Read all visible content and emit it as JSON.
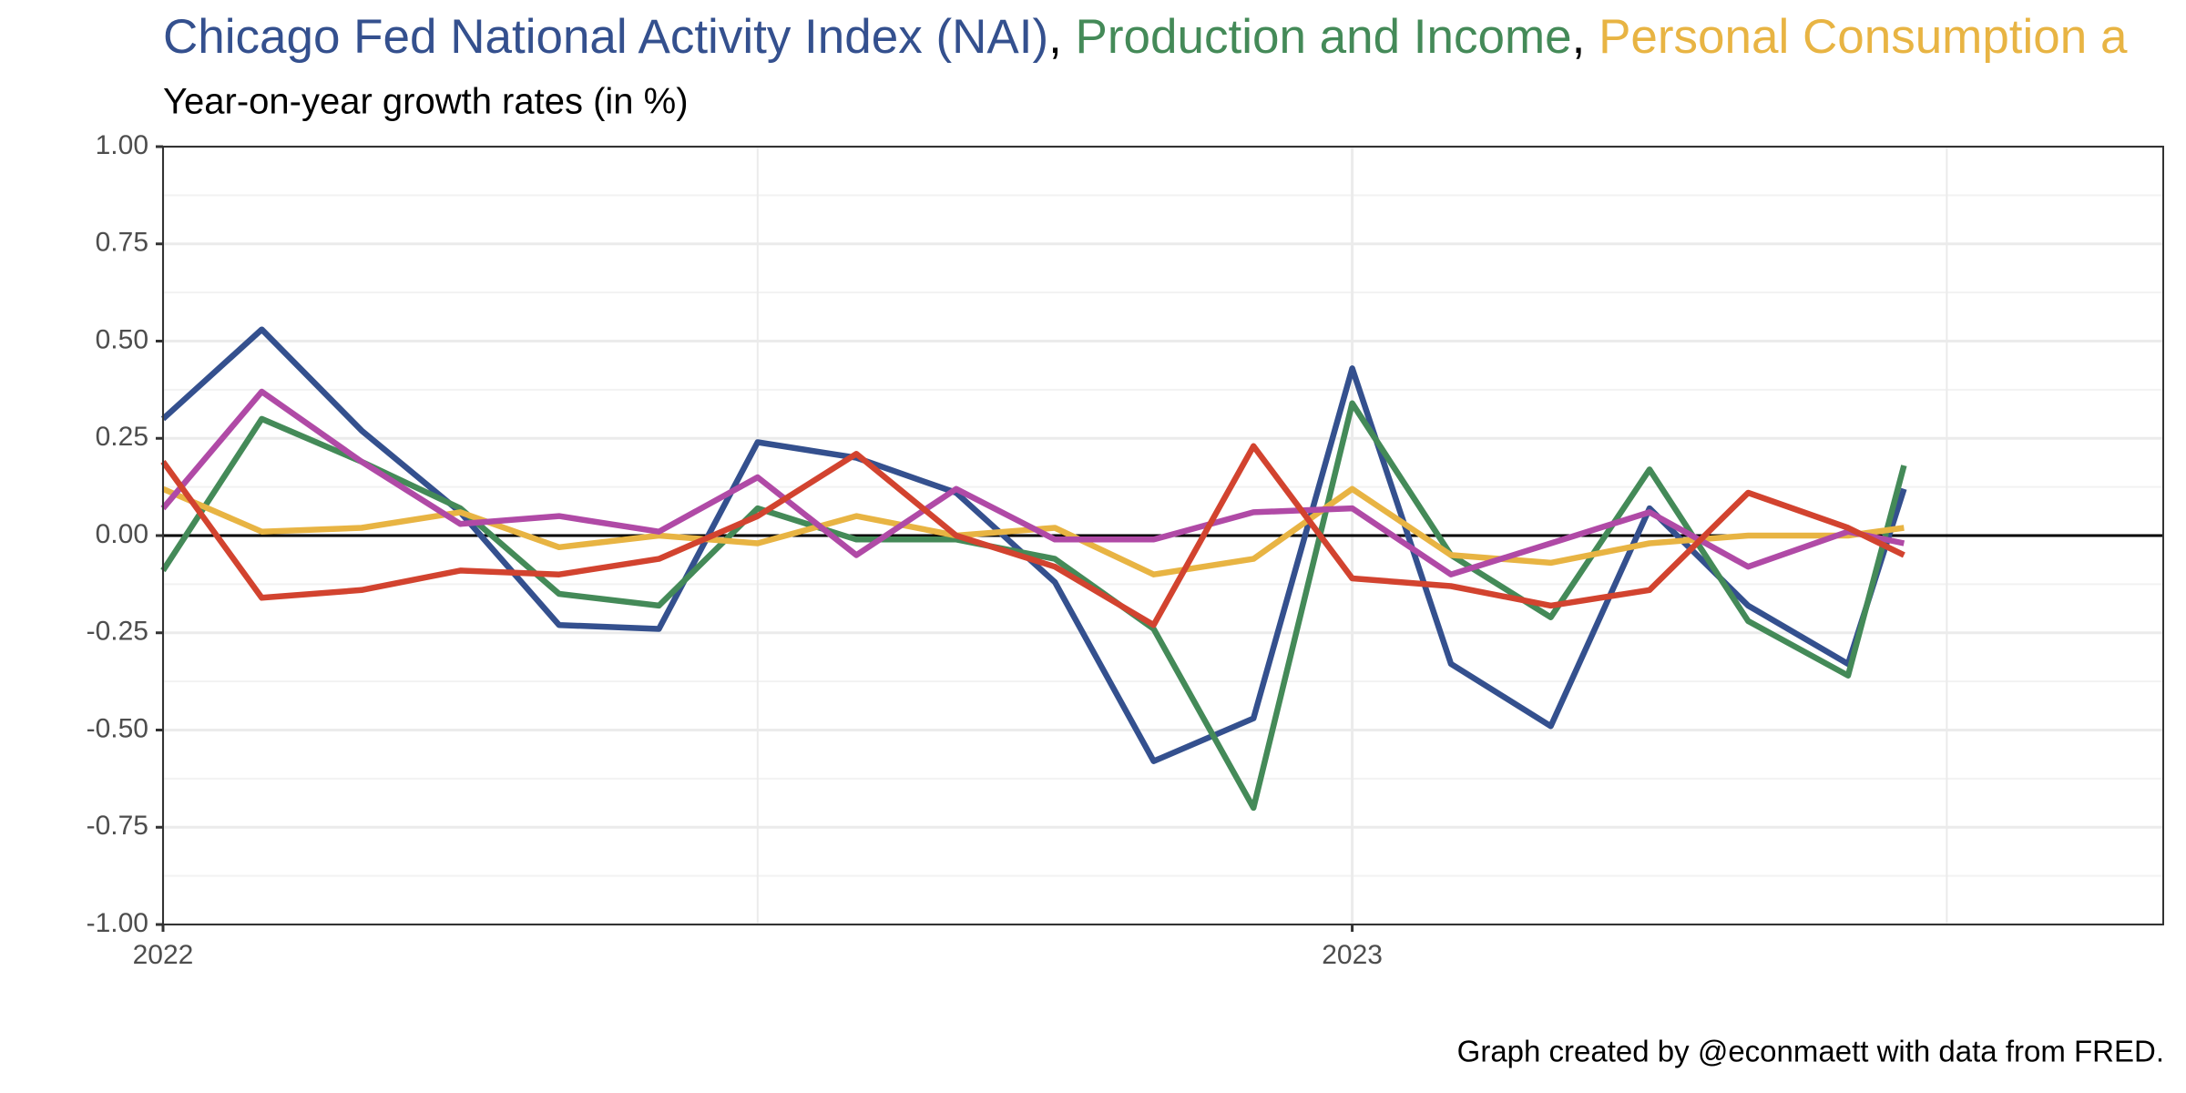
{
  "chart_data": {
    "type": "line",
    "title_separator": ", ",
    "subtitle": "Year-on-year growth rates (in %)",
    "caption": "Graph created by @econmaett with data from FRED.",
    "x": [
      2022,
      2022.083,
      2022.167,
      2022.25,
      2022.333,
      2022.417,
      2022.5,
      2022.583,
      2022.667,
      2022.75,
      2022.833,
      2022.917,
      2023,
      2023.083,
      2023.167,
      2023.25,
      2023.333,
      2023.417,
      2023.464
    ],
    "xlim": [
      2022,
      2023.682
    ],
    "xticks": [
      2022,
      2023
    ],
    "xminor": [
      2022.5,
      2023.5
    ],
    "ylim": [
      -1,
      1
    ],
    "yticks": [
      {
        "value": -1,
        "label": "-1.00"
      },
      {
        "value": -0.75,
        "label": "-0.75"
      },
      {
        "value": -0.5,
        "label": "-0.50"
      },
      {
        "value": -0.25,
        "label": "-0.25"
      },
      {
        "value": 0,
        "label": "0.00"
      },
      {
        "value": 0.25,
        "label": "0.25"
      },
      {
        "value": 0.5,
        "label": "0.50"
      },
      {
        "value": 0.75,
        "label": "0.75"
      },
      {
        "value": 1,
        "label": "1.00"
      }
    ],
    "yminor": [
      -0.875,
      -0.625,
      -0.375,
      -0.125,
      0.125,
      0.375,
      0.625,
      0.875
    ],
    "grid": true,
    "series": [
      {
        "name": "Chicago Fed National Activity Index (NAI)",
        "color": "#34508e",
        "values": [
          0.3,
          0.53,
          0.27,
          0.06,
          -0.23,
          -0.24,
          0.24,
          0.2,
          0.11,
          -0.12,
          -0.58,
          -0.47,
          0.43,
          -0.33,
          -0.49,
          0.07,
          -0.18,
          -0.33,
          0.12
        ]
      },
      {
        "name": "Production and Income",
        "color": "#448a58",
        "values": [
          -0.09,
          0.3,
          0.19,
          0.07,
          -0.15,
          -0.18,
          0.07,
          -0.01,
          -0.01,
          -0.06,
          -0.24,
          -0.7,
          0.34,
          -0.05,
          -0.21,
          0.17,
          -0.22,
          -0.36,
          0.18
        ]
      },
      {
        "name": "Personal Consumption a",
        "color": "#e8b443",
        "values": [
          0.12,
          0.01,
          0.02,
          0.06,
          -0.03,
          0,
          -0.02,
          0.05,
          0,
          0.02,
          -0.1,
          -0.06,
          0.12,
          -0.05,
          -0.07,
          -0.02,
          0,
          0,
          0.02
        ]
      },
      {
        "color": "#b04aa6",
        "values": [
          0.07,
          0.37,
          0.19,
          0.03,
          0.05,
          0.01,
          0.15,
          -0.05,
          0.12,
          -0.01,
          -0.01,
          0.06,
          0.07,
          -0.1,
          -0.02,
          0.06,
          -0.08,
          0.01,
          -0.02
        ]
      },
      {
        "color": "#d2432f",
        "values": [
          0.19,
          -0.16,
          -0.14,
          -0.09,
          -0.1,
          -0.06,
          0.05,
          0.21,
          0,
          -0.08,
          -0.23,
          0.23,
          -0.11,
          -0.13,
          -0.18,
          -0.14,
          0.11,
          0.02,
          -0.05
        ]
      }
    ]
  }
}
